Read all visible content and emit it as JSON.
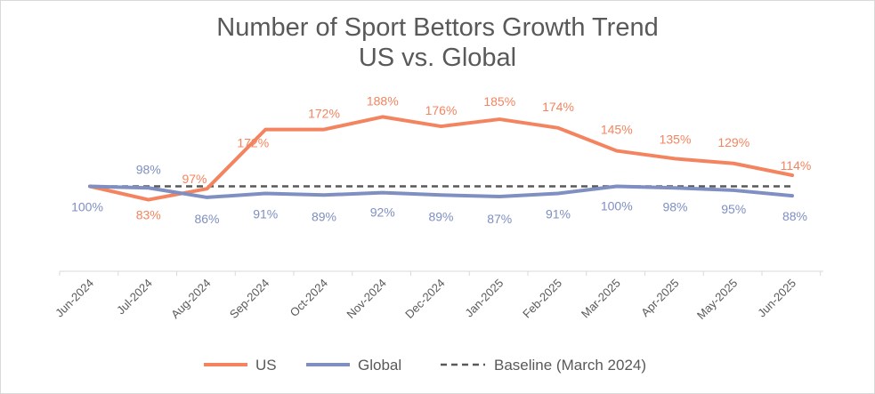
{
  "chart_data": {
    "type": "line",
    "title": "Number of Sport Bettors Growth Trend",
    "subtitle": "US vs. Global",
    "categories": [
      "Jun-2024",
      "Jul-2024",
      "Aug-2024",
      "Sep-2024",
      "Oct-2024",
      "Nov-2024",
      "Dec-2024",
      "Jan-2025",
      "Feb-2025",
      "Mar-2025",
      "Apr-2025",
      "May-2025",
      "Jun-2025"
    ],
    "series": [
      {
        "name": "US",
        "color": "#F4845F",
        "values": [
          100,
          83,
          97,
          172,
          172,
          188,
          176,
          185,
          174,
          145,
          135,
          129,
          114
        ],
        "labels": [
          "",
          "83%",
          "97%",
          "172%",
          "172%",
          "188%",
          "176%",
          "185%",
          "174%",
          "145%",
          "135%",
          "129%",
          "114%"
        ]
      },
      {
        "name": "Global",
        "color": "#7F8FC2",
        "values": [
          100,
          98,
          86,
          91,
          89,
          92,
          89,
          87,
          91,
          100,
          98,
          95,
          88
        ],
        "labels": [
          "100%",
          "98%",
          "86%",
          "91%",
          "89%",
          "92%",
          "89%",
          "87%",
          "91%",
          "100%",
          "98%",
          "95%",
          "88%"
        ]
      }
    ],
    "baseline": {
      "name": "Baseline (March 2024)",
      "value": 100,
      "color": "#595959"
    },
    "xlabel": "",
    "ylabel": "",
    "grid": false,
    "legend": "bottom"
  }
}
